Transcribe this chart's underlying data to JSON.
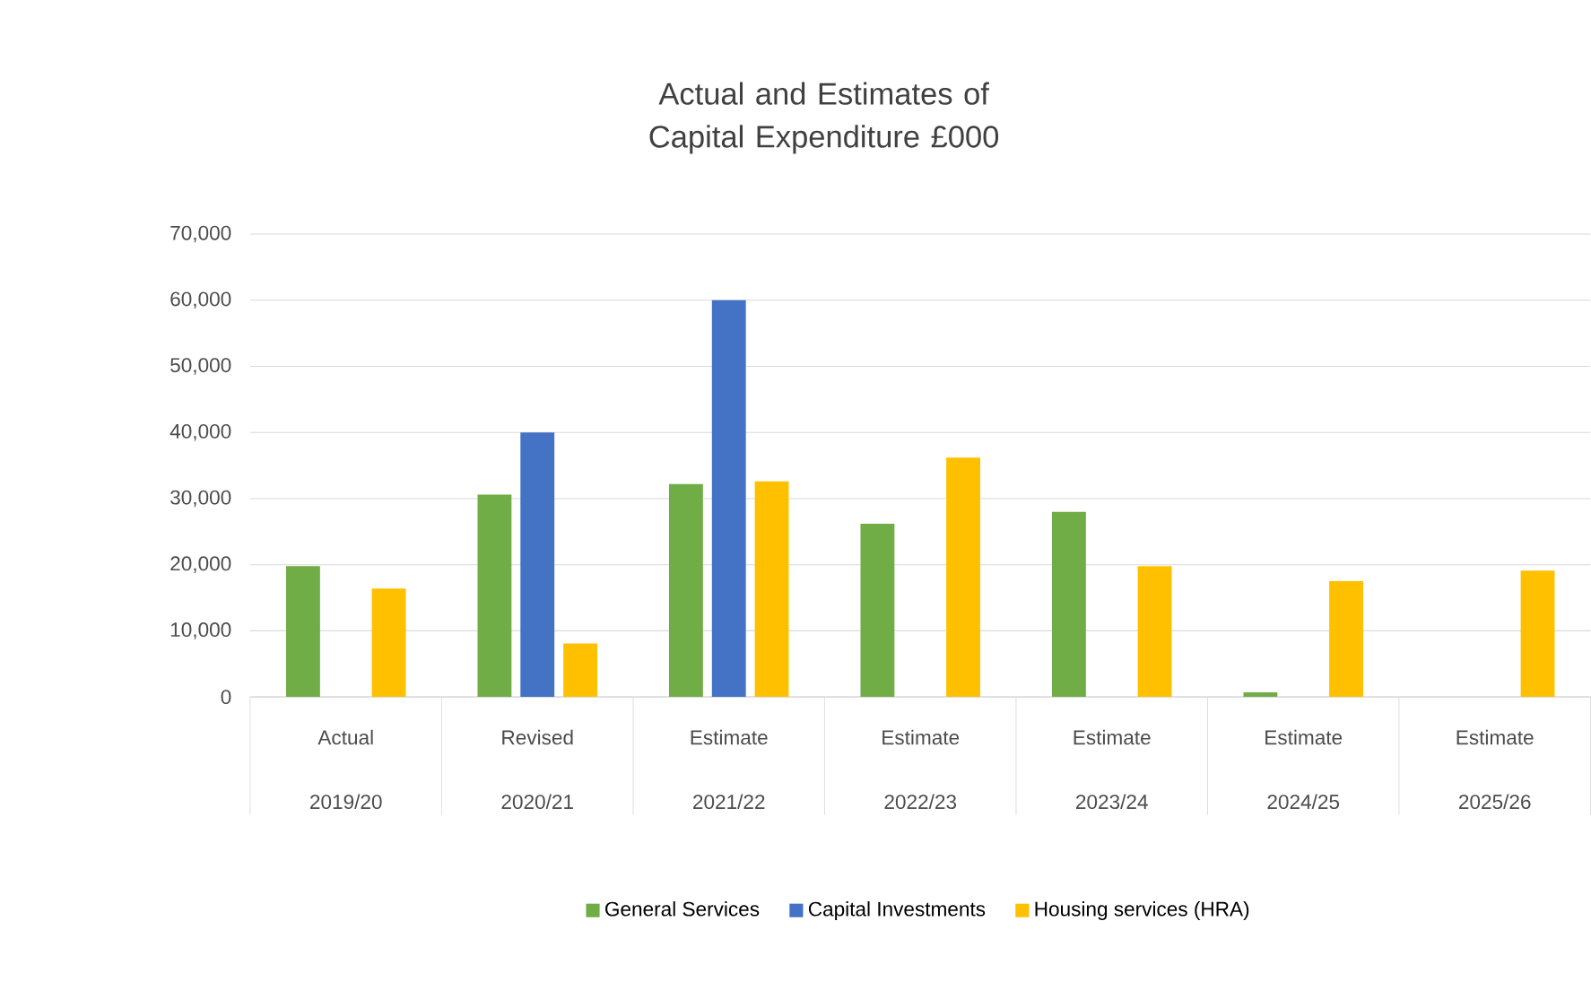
{
  "chart_data": {
    "type": "bar",
    "title": "Actual and Estimates of Capital Expenditure £000",
    "categories": [
      "Actual 2019/20",
      "Revised 2020/21",
      "Estimate 2021/22",
      "Estimate 2022/23",
      "Estimate 2023/24",
      "Estimate 2024/25",
      "Estimate 2025/26"
    ],
    "series": [
      {
        "name": "General Services",
        "color": "#70ad47",
        "values": [
          19800,
          30600,
          32200,
          26200,
          28000,
          700,
          null
        ]
      },
      {
        "name": "Capital Investments",
        "color": "#4472c4",
        "values": [
          null,
          40000,
          60000,
          null,
          null,
          null,
          null
        ]
      },
      {
        "name": "Housing services (HRA)",
        "color": "#ffc000",
        "values": [
          16400,
          8100,
          32600,
          36200,
          19800,
          17500,
          19100
        ]
      }
    ],
    "ylim": [
      0,
      70000
    ],
    "yticks": [
      0,
      {
        "value": 10000,
        "label": "10,000"
      },
      {
        "value": 20000,
        "label": "20,000"
      },
      {
        "value": 30000,
        "label": "30,000"
      },
      {
        "value": 40000,
        "label": "40,000"
      },
      {
        "value": 50000,
        "label": "50,000"
      },
      {
        "value": 60000,
        "label": "60,000"
      },
      {
        "value": 70000,
        "label": "70,000"
      }
    ],
    "grid": "y",
    "legend": "bottom"
  }
}
